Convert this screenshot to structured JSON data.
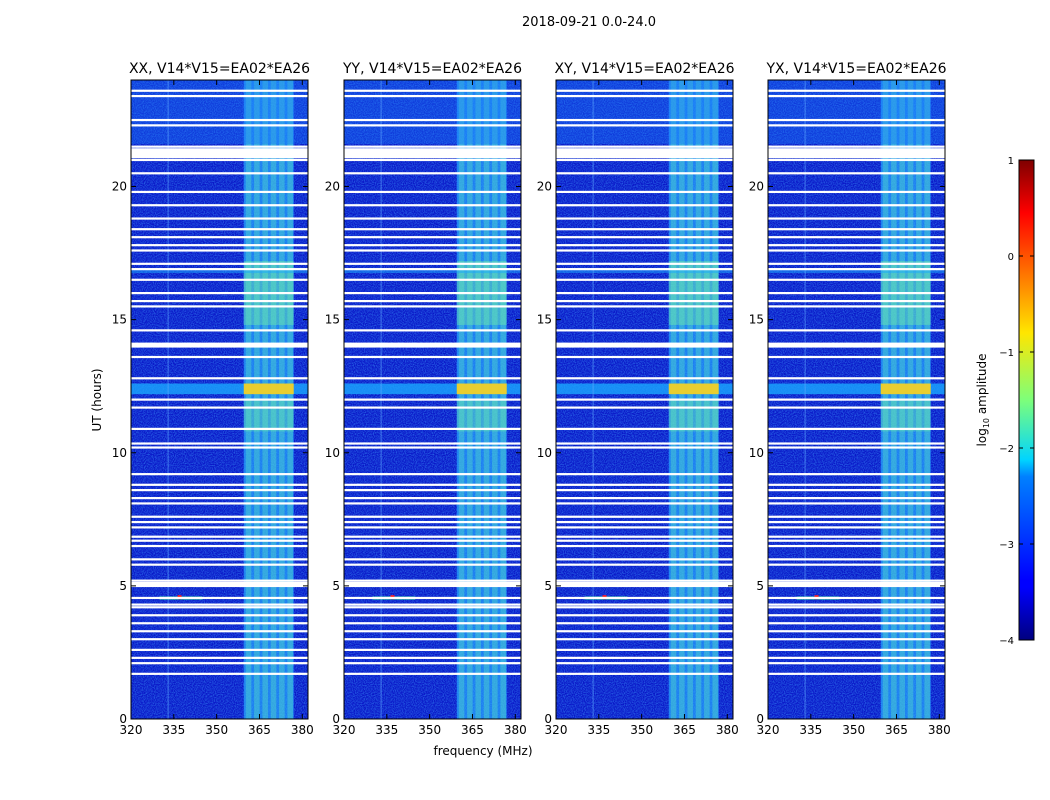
{
  "figure": {
    "suptitle": "2018-09-21 0.0-24.0"
  },
  "chart_data": {
    "type": "heatmap",
    "title": "2018-09-21 0.0-24.0",
    "xlabel": "frequency (MHz)",
    "ylabel": "UT (hours)",
    "xlim": [
      320,
      382
    ],
    "ylim": [
      0,
      24
    ],
    "x_ticks": [
      320,
      335,
      350,
      365,
      380
    ],
    "y_ticks": [
      0,
      5,
      10,
      15,
      20
    ],
    "panels": [
      {
        "title": "XX, V14*V15=EA02*EA26"
      },
      {
        "title": "YY, V14*V15=EA02*EA26"
      },
      {
        "title": "XY, V14*V15=EA02*EA26"
      },
      {
        "title": "YX, V14*V15=EA02*EA26"
      }
    ],
    "colorbar": {
      "label": "log10 amplitude",
      "label_main": "log",
      "label_sub": "10",
      "label_rest": " amplitude",
      "range": [
        -4,
        1
      ],
      "ticks": [
        1,
        0,
        -1,
        -2,
        -3,
        -4
      ],
      "tick_labels": [
        "1",
        "0",
        "−1",
        "−2",
        "−3",
        "−4"
      ]
    },
    "rfi_band_mhz": [
      359.5,
      377
    ],
    "strong_rfi_ut_hours": [
      12.2,
      12.6
    ],
    "blank_ut_hours": [
      1.7,
      2.1,
      2.3,
      2.6,
      3.0,
      3.3,
      3.6,
      3.9,
      4.2,
      4.3,
      4.55,
      5.0,
      5.2,
      5.8,
      6.0,
      6.5,
      6.7,
      6.85,
      7.2,
      7.4,
      7.6,
      8.1,
      8.3,
      8.6,
      8.8,
      9.2,
      10.2,
      10.35,
      10.9,
      11.7,
      12.0,
      12.8,
      13.6,
      14.0,
      14.1,
      14.6,
      15.5,
      15.7,
      16.0,
      16.5,
      16.9,
      17.1,
      17.6,
      17.8,
      18.1,
      18.4,
      18.8,
      19.3,
      19.8,
      20.5,
      21.0,
      21.2,
      21.4,
      21.5,
      22.3,
      22.5,
      23.4,
      23.6
    ]
  }
}
